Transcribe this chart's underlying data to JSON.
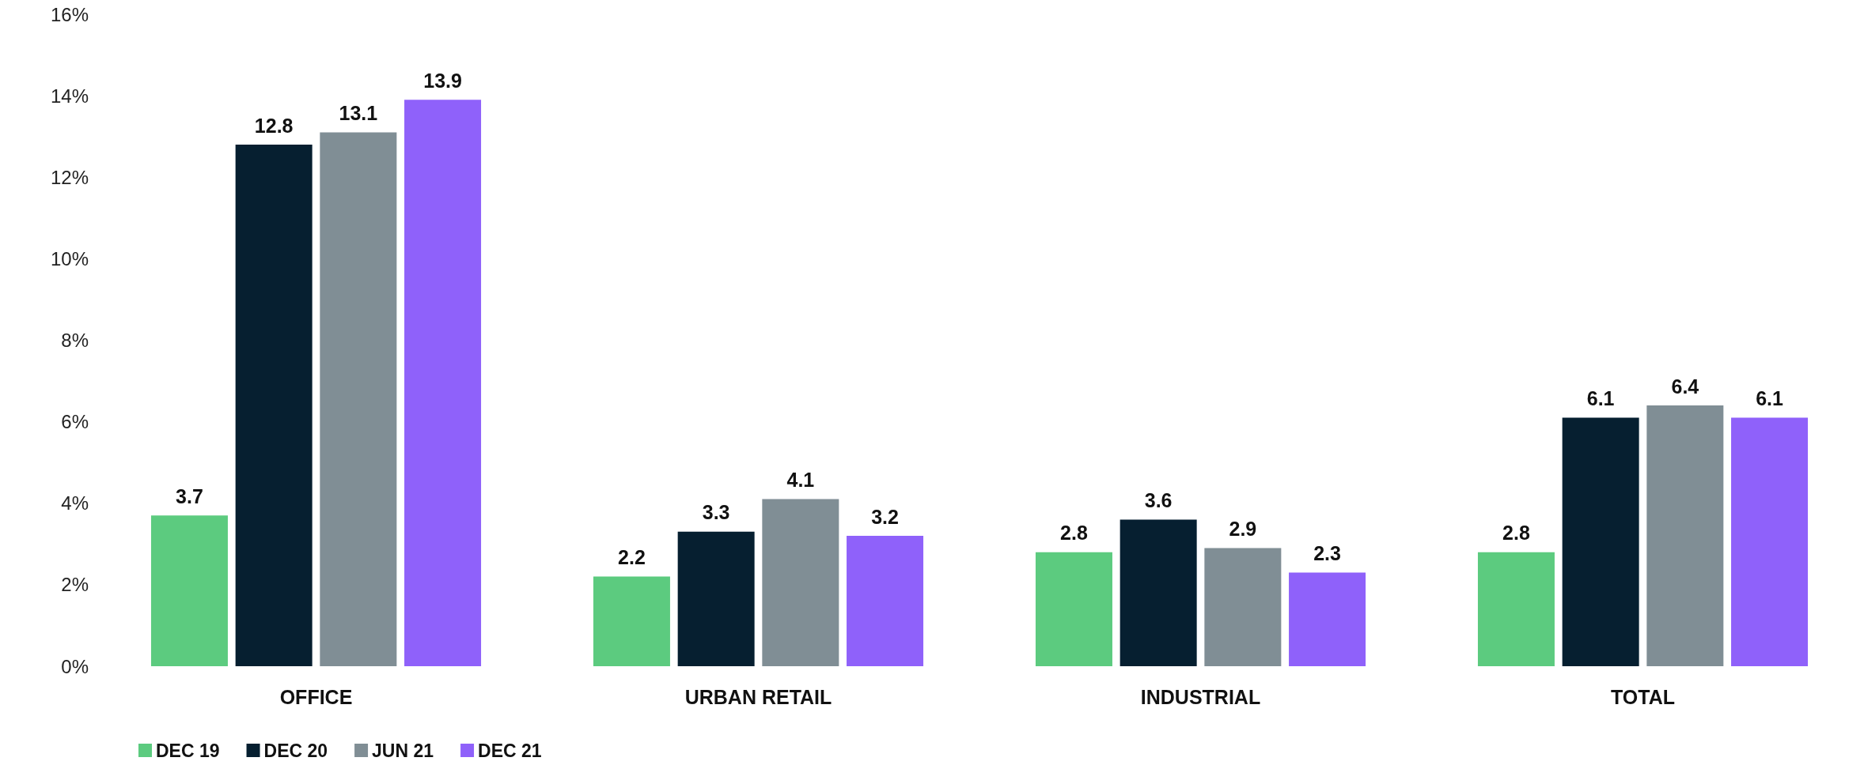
{
  "chart_data": {
    "type": "bar",
    "categories": [
      "OFFICE",
      "URBAN RETAIL",
      "INDUSTRIAL",
      "TOTAL"
    ],
    "series": [
      {
        "name": "DEC 19",
        "color": "#5ccb7f",
        "values": [
          3.7,
          2.2,
          2.8,
          2.8
        ]
      },
      {
        "name": "DEC 20",
        "color": "#061f30",
        "values": [
          12.8,
          3.3,
          3.6,
          6.1
        ]
      },
      {
        "name": "JUN 21",
        "color": "#808e95",
        "values": [
          13.1,
          4.1,
          2.9,
          6.4
        ]
      },
      {
        "name": "DEC 21",
        "color": "#8f61fa",
        "values": [
          13.9,
          3.2,
          2.3,
          6.1
        ]
      }
    ],
    "ylim": [
      0,
      16
    ],
    "yticks": [
      {
        "value": 0,
        "label": "0%"
      },
      {
        "value": 2,
        "label": "2%"
      },
      {
        "value": 4,
        "label": "4%"
      },
      {
        "value": 6,
        "label": "6%"
      },
      {
        "value": 8,
        "label": "8%"
      },
      {
        "value": 10,
        "label": "10%"
      },
      {
        "value": 12,
        "label": "12%"
      },
      {
        "value": 14,
        "label": "14%"
      },
      {
        "value": 16,
        "label": "16%"
      }
    ],
    "data_labels": true,
    "grid": false,
    "legend": "bottom left"
  }
}
